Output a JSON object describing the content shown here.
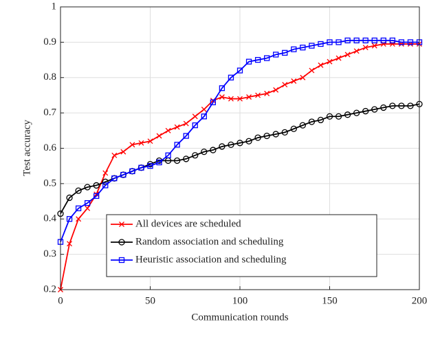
{
  "chart_data": {
    "type": "line",
    "x_label": "Communication rounds",
    "y_label": "Test accuracy",
    "xlim": [
      0,
      200
    ],
    "ylim": [
      0.2,
      1
    ],
    "xticks": [
      0,
      50,
      100,
      150,
      200
    ],
    "yticks": [
      0.2,
      0.3,
      0.4,
      0.5,
      0.6,
      0.7,
      0.8,
      0.9,
      1
    ],
    "grid": true,
    "legend_position": "lower center",
    "x": [
      0,
      5,
      10,
      15,
      20,
      25,
      30,
      35,
      40,
      45,
      50,
      55,
      60,
      65,
      70,
      75,
      80,
      85,
      90,
      95,
      100,
      105,
      110,
      115,
      120,
      125,
      130,
      135,
      140,
      145,
      150,
      155,
      160,
      165,
      170,
      175,
      180,
      185,
      190,
      195,
      200
    ],
    "series": [
      {
        "name": "All devices are scheduled",
        "color": "#ff0000",
        "marker": "x",
        "values": [
          0.2,
          0.33,
          0.4,
          0.43,
          0.47,
          0.53,
          0.58,
          0.59,
          0.61,
          0.615,
          0.62,
          0.635,
          0.65,
          0.66,
          0.67,
          0.69,
          0.71,
          0.735,
          0.745,
          0.74,
          0.74,
          0.745,
          0.75,
          0.755,
          0.765,
          0.78,
          0.79,
          0.8,
          0.82,
          0.835,
          0.845,
          0.855,
          0.865,
          0.875,
          0.885,
          0.89,
          0.895,
          0.895,
          0.895,
          0.895,
          0.895
        ]
      },
      {
        "name": "Random association and scheduling",
        "color": "#000000",
        "marker": "o",
        "values": [
          0.415,
          0.46,
          0.48,
          0.49,
          0.495,
          0.505,
          0.515,
          0.525,
          0.535,
          0.545,
          0.555,
          0.565,
          0.565,
          0.565,
          0.57,
          0.58,
          0.59,
          0.595,
          0.605,
          0.61,
          0.615,
          0.62,
          0.63,
          0.635,
          0.64,
          0.645,
          0.655,
          0.665,
          0.675,
          0.68,
          0.69,
          0.69,
          0.695,
          0.7,
          0.705,
          0.71,
          0.715,
          0.72,
          0.72,
          0.72,
          0.725
        ]
      },
      {
        "name": "Heuristic association and scheduling",
        "color": "#0000ff",
        "marker": "s",
        "values": [
          0.335,
          0.4,
          0.43,
          0.445,
          0.465,
          0.495,
          0.515,
          0.525,
          0.535,
          0.545,
          0.55,
          0.56,
          0.58,
          0.61,
          0.635,
          0.665,
          0.69,
          0.73,
          0.77,
          0.8,
          0.82,
          0.845,
          0.85,
          0.855,
          0.865,
          0.87,
          0.88,
          0.885,
          0.89,
          0.895,
          0.9,
          0.9,
          0.905,
          0.905,
          0.905,
          0.905,
          0.905,
          0.905,
          0.9,
          0.9,
          0.9
        ]
      }
    ]
  }
}
